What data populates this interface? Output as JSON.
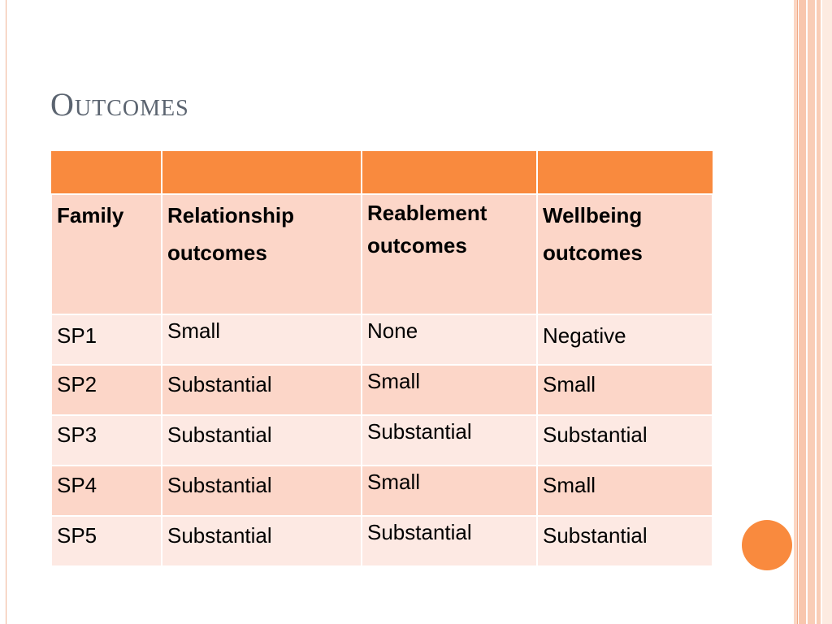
{
  "slide": {
    "title": "Outcomes"
  },
  "table": {
    "columns": [
      "Family",
      "Relationship outcomes",
      "Reablement outcomes",
      "Wellbeing outcomes"
    ],
    "column_lines": [
      [
        "Family"
      ],
      [
        "Relationship",
        "outcomes"
      ],
      [
        "Reablement",
        "outcomes"
      ],
      [
        "Wellbeing",
        "outcomes"
      ]
    ],
    "rows": [
      [
        "SP1",
        "Small",
        "None",
        "Negative"
      ],
      [
        "SP2",
        "Substantial",
        "Small",
        "Small"
      ],
      [
        "SP3",
        "Substantial",
        "Substantial",
        "Substantial"
      ],
      [
        "SP4",
        "Substantial",
        "Small",
        "Small"
      ],
      [
        "SP5",
        "Substantial",
        "Substantial",
        "Substantial"
      ]
    ]
  },
  "colors": {
    "accent": "#f98a3e",
    "row_dark": "#fcd6c8",
    "row_light": "#fde9e3",
    "title": "#5b6470"
  }
}
